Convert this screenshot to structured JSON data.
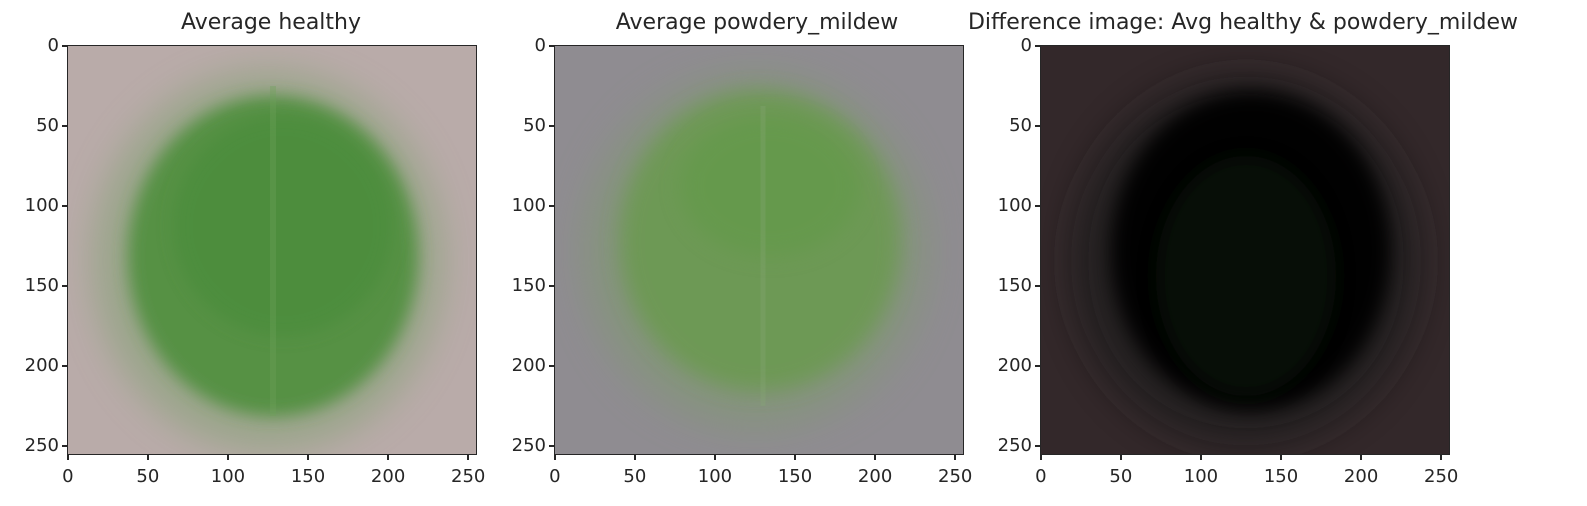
{
  "panels": [
    {
      "title": "Average healthy"
    },
    {
      "title": "Average powdery_mildew"
    },
    {
      "title": "Difference image: Avg healthy & powdery_mildew"
    }
  ],
  "y_ticks": [
    "0",
    "50",
    "100",
    "150",
    "200",
    "250"
  ],
  "x_ticks": [
    "0",
    "50",
    "100",
    "150",
    "200",
    "250"
  ],
  "colors": {
    "healthy_bg": "#b9aba9",
    "healthy_leaf": "#4f8f3e",
    "mildew_bg": "#8f8c91",
    "mildew_leaf": "#6a9a4f",
    "diff_bg": "#33282a",
    "diff_leaf": "#000000"
  }
}
